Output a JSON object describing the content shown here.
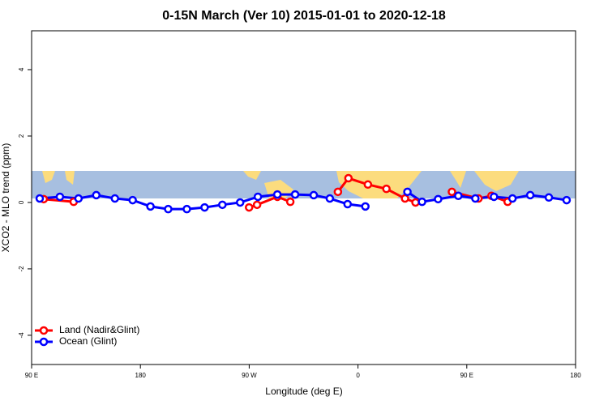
{
  "chart_data": {
    "type": "line",
    "title": "0-15N March (Ver 10)   2015-01-01 to 2020-12-18",
    "x_label": "Longitude (deg E)",
    "y_label": "XCO2 - MLO trend (ppm)",
    "xlim": [
      90,
      540
    ],
    "ylim": [
      -4.88,
      5.17
    ],
    "xticks": [
      {
        "value": 90,
        "label": "90 E"
      },
      180,
      {
        "value": 270,
        "label": "90 W"
      },
      {
        "value": 360,
        "label": "0"
      },
      {
        "value": 450,
        "label": "90 E"
      },
      {
        "value": 540,
        "label": "180"
      }
    ],
    "yticks": [
      -4,
      -2,
      0,
      2,
      4
    ],
    "legend": "bottom-left",
    "series": [
      {
        "name": "Land (Nadir&Glint)",
        "color": "#ff0000",
        "x": [
          100.0,
          124.8,
          null,
          269.9,
          276.5,
          293.3,
          304.0,
          null,
          343.4,
          352.1,
          368.2,
          383.5,
          398.9,
          407.6,
          null,
          437.7,
          459.7,
          470.4,
          483.8
        ],
        "values": [
          0.1,
          0.02,
          null,
          -0.15,
          -0.07,
          0.17,
          0.02,
          null,
          0.32,
          0.73,
          0.54,
          0.41,
          0.12,
          0.0,
          null,
          0.32,
          0.12,
          0.2,
          0.02
        ]
      },
      {
        "name": "Ocean (Glint)",
        "color": "#0000ff",
        "x": [
          96.7,
          113.4,
          128.8,
          143.5,
          158.9,
          173.6,
          188.3,
          203.0,
          218.4,
          233.1,
          247.8,
          262.5,
          277.2,
          293.3,
          308.0,
          323.4,
          336.7,
          351.4,
          366.1,
          null,
          400.9,
          413.0,
          426.3,
          443.0,
          457.1,
          472.5,
          487.8,
          502.5,
          517.9,
          532.6
        ],
        "values": [
          0.12,
          0.17,
          0.12,
          0.22,
          0.12,
          0.07,
          -0.12,
          -0.2,
          -0.2,
          -0.15,
          -0.07,
          0.0,
          0.17,
          0.24,
          0.24,
          0.22,
          0.12,
          -0.05,
          -0.12,
          null,
          0.32,
          0.02,
          0.1,
          0.2,
          0.12,
          0.17,
          0.12,
          0.22,
          0.15,
          0.07
        ]
      }
    ]
  }
}
